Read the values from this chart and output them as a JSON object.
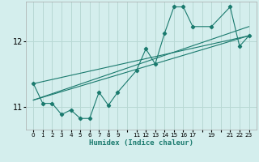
{
  "title": "",
  "xlabel": "Humidex (Indice chaleur)",
  "bg_color": "#d4eeed",
  "line_color": "#1a7a6e",
  "grid_color": "#b8d8d4",
  "ylim": [
    10.65,
    12.6
  ],
  "yticks": [
    11,
    12
  ],
  "xtick_labels": [
    "0",
    "1",
    "2",
    "3",
    "4",
    "5",
    "6",
    "7",
    "8",
    "9",
    "",
    "11",
    "12",
    "13",
    "14",
    "15",
    "16",
    "17",
    "",
    "19",
    "",
    "21",
    "22",
    "23"
  ],
  "xtick_positions": [
    0,
    1,
    2,
    3,
    4,
    5,
    6,
    7,
    8,
    9,
    10,
    11,
    12,
    13,
    14,
    15,
    16,
    17,
    18,
    19,
    20,
    21,
    22,
    23
  ],
  "series": [
    [
      0,
      11.35
    ],
    [
      1,
      11.05
    ],
    [
      2,
      11.05
    ],
    [
      3,
      10.88
    ],
    [
      4,
      10.95
    ],
    [
      5,
      10.82
    ],
    [
      6,
      10.82
    ],
    [
      7,
      11.22
    ],
    [
      8,
      11.02
    ],
    [
      9,
      11.22
    ],
    [
      11,
      11.55
    ],
    [
      12,
      11.88
    ],
    [
      13,
      11.65
    ],
    [
      14,
      12.12
    ],
    [
      15,
      12.52
    ],
    [
      16,
      12.52
    ],
    [
      17,
      12.22
    ],
    [
      19,
      12.22
    ],
    [
      21,
      12.52
    ],
    [
      22,
      11.92
    ],
    [
      23,
      12.08
    ]
  ],
  "series2": [
    [
      0,
      11.35
    ],
    [
      23,
      12.08
    ]
  ],
  "series3": [
    [
      0,
      11.1
    ],
    [
      23,
      12.08
    ]
  ],
  "series4": [
    [
      0,
      11.1
    ],
    [
      23,
      12.22
    ]
  ]
}
